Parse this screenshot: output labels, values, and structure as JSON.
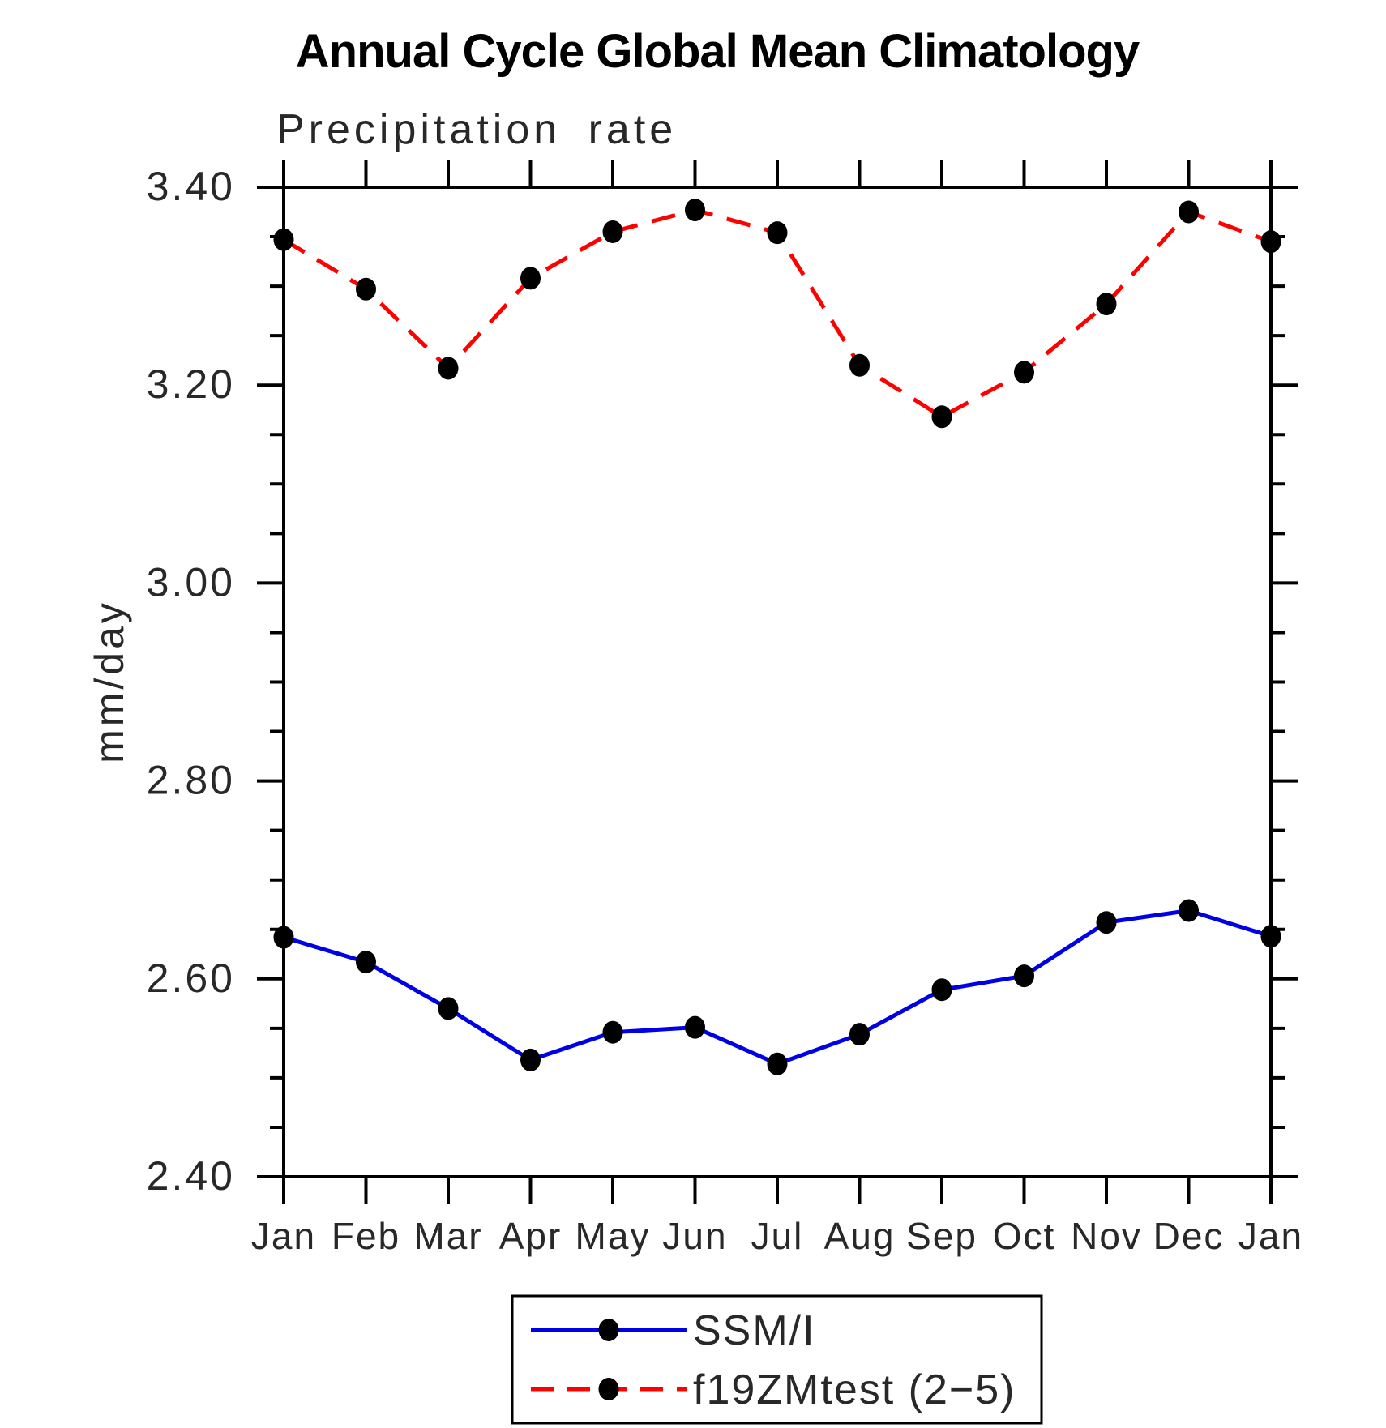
{
  "chart_data": {
    "type": "line",
    "title": "Annual Cycle Global Mean Climatology",
    "subtitle": "Precipitation rate",
    "ylabel": "mm/day",
    "x_categories": [
      "Jan",
      "Feb",
      "Mar",
      "Apr",
      "May",
      "Jun",
      "Jul",
      "Aug",
      "Sep",
      "Oct",
      "Nov",
      "Dec",
      "Jan"
    ],
    "ylim": [
      2.4,
      3.4
    ],
    "ytick_major_interval": 0.2,
    "ytick_minor_interval": 0.05,
    "ytick_labels": [
      "3.40",
      "3.20",
      "3.00",
      "2.80",
      "2.60",
      "2.40"
    ],
    "grid": false,
    "legend_position": "bottom-center",
    "series": [
      {
        "name": "SSM/I",
        "line_color": "#0000e6",
        "line_style": "solid",
        "marker": "filled-circle",
        "marker_color": "#000000",
        "values": [
          2.642,
          2.617,
          2.57,
          2.518,
          2.546,
          2.551,
          2.514,
          2.544,
          2.589,
          2.603,
          2.657,
          2.669,
          2.643
        ]
      },
      {
        "name": "f19ZMtest (2−5)",
        "line_color": "#ff0000",
        "line_style": "dashed",
        "marker": "filled-circle",
        "marker_color": "#000000",
        "values": [
          3.347,
          3.297,
          3.217,
          3.308,
          3.355,
          3.377,
          3.354,
          3.22,
          3.168,
          3.213,
          3.282,
          3.375,
          3.345
        ]
      }
    ]
  },
  "colors": {
    "axis": "#000000",
    "tick_label": "#282828",
    "background": "#ffffff"
  }
}
